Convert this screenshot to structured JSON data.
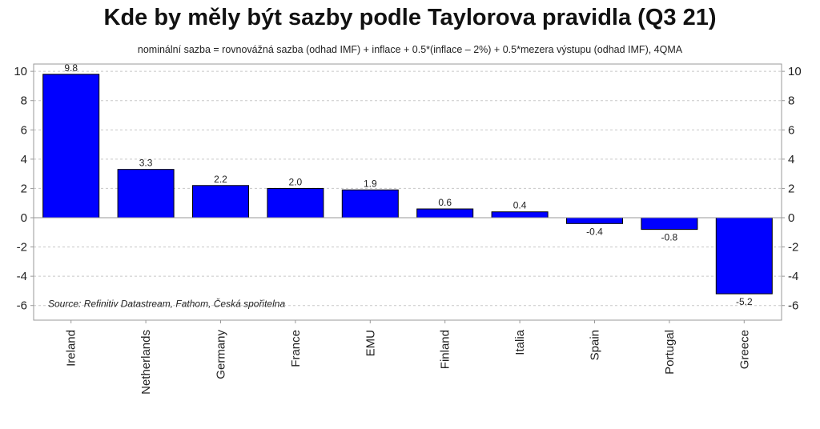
{
  "chart_data": {
    "type": "bar",
    "title": "Kde by měly být sazby podle Taylorova pravidla (Q3 21)",
    "subtitle": "nominální sazba = rovnovážná sazba (odhad IMF) + inflace + 0.5*(inflace – 2%) + 0.5*mezera výstupu (odhad IMF), 4QMA",
    "categories": [
      "Ireland",
      "Netherlands",
      "Germany",
      "France",
      "EMU",
      "Finland",
      "Italia",
      "Spain",
      "Portugal",
      "Greece"
    ],
    "values": [
      9.8,
      3.3,
      2.2,
      2.0,
      1.9,
      0.6,
      0.4,
      -0.4,
      -0.8,
      -5.2
    ],
    "data_labels": [
      "9.8",
      "3.3",
      "2.2",
      "2.0",
      "1.9",
      "0.6",
      "0.4",
      "-0.4",
      "-0.8",
      "-5.2"
    ],
    "ylim": [
      -7,
      10.5
    ],
    "yticks": [
      10,
      8,
      6,
      4,
      2,
      0,
      -2,
      -4,
      -6
    ],
    "ytick_labels": [
      "10",
      "8",
      "6",
      "4",
      "2",
      "0",
      "-2",
      "-4",
      "-6"
    ],
    "bar_color": "#0000ff",
    "grid": true,
    "source": "Source: Refinitiv Datastream, Fathom, Česká spořitelna"
  }
}
